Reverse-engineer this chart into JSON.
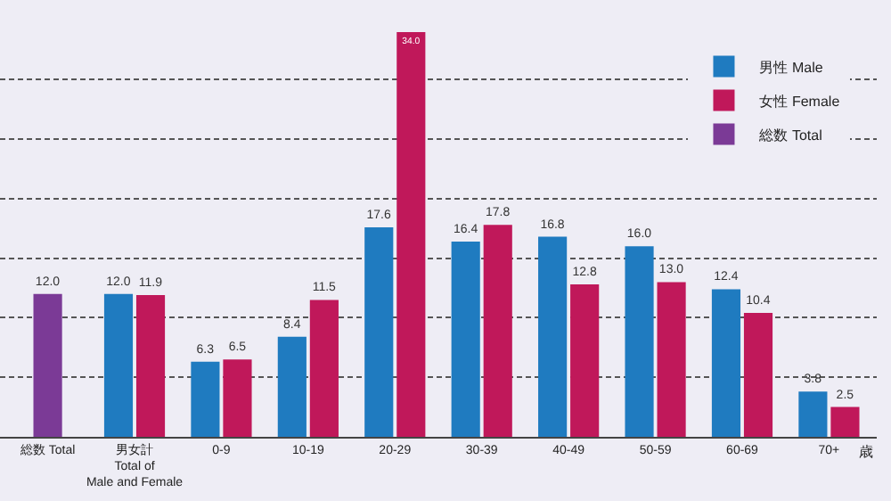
{
  "chart_data": {
    "type": "bar",
    "categories": [
      "総数 Total",
      "男女計\nTotal of\nMale and Female",
      "0-9",
      "10-19",
      "20-29",
      "30-39",
      "40-49",
      "50-59",
      "60-69",
      "70+"
    ],
    "series": [
      {
        "name": "男性 Male",
        "color": "#1f7bc0",
        "values": [
          null,
          12.0,
          6.3,
          8.4,
          17.6,
          16.4,
          16.8,
          16.0,
          12.4,
          3.8
        ],
        "value_labels": [
          null,
          "12.0",
          "6.3",
          "8.4",
          "17.6",
          "16.4",
          "16.8",
          "16.0",
          "12.4",
          "3.8"
        ]
      },
      {
        "name": "女性 Female",
        "color": "#c0185a",
        "values": [
          null,
          11.9,
          6.5,
          11.5,
          34.0,
          17.8,
          12.8,
          13.0,
          10.4,
          2.5
        ],
        "value_labels": [
          null,
          "11.9",
          "6.5",
          "11.5",
          "34.0",
          "17.8",
          "12.8",
          "13.0",
          "10.4",
          "2.5"
        ]
      },
      {
        "name": "総数 Total",
        "color": "#7b3a96",
        "values": [
          12.0,
          null,
          null,
          null,
          null,
          null,
          null,
          null,
          null,
          null
        ],
        "value_labels": [
          "12.0",
          null,
          null,
          null,
          null,
          null,
          null,
          null,
          null,
          null
        ]
      }
    ],
    "yticks": [
      {
        "value": 5,
        "label": null
      },
      {
        "value": 10,
        "label": null
      },
      {
        "value": 15,
        "label": null
      },
      {
        "value": 20,
        "label": null
      },
      {
        "value": 25,
        "label": null
      },
      {
        "value": 30,
        "label": null
      }
    ],
    "tick_labels": "x",
    "grid": "y",
    "legend": "top right",
    "annotations": [
      "歳"
    ]
  }
}
